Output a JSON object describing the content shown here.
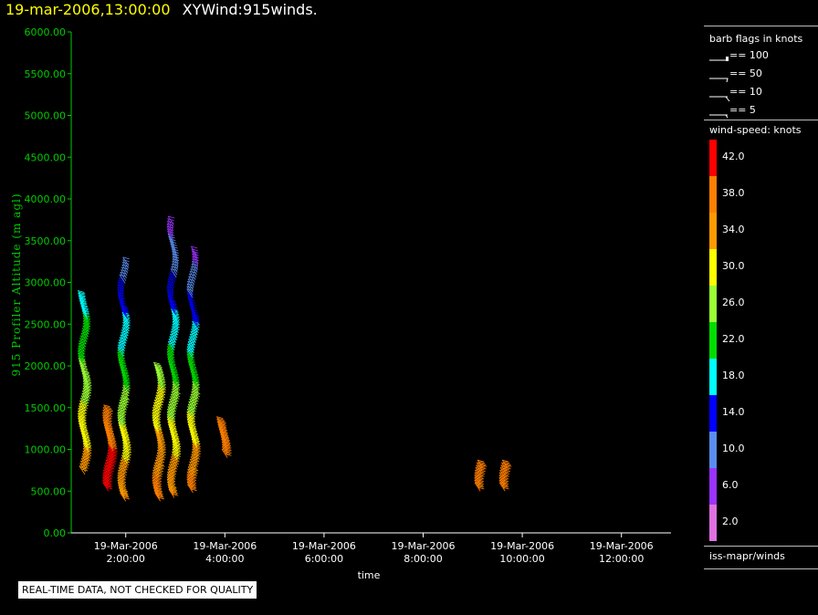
{
  "header": {
    "timestamp": "19-mar-2006,13:00:00",
    "title": "XYWind:915winds."
  },
  "colors": {
    "axis_y": "#00cc00",
    "axis_x": "#ffffff",
    "timestamp": "#ffff00"
  },
  "chart_data": {
    "type": "scatter",
    "title": "XYWind:915winds.",
    "xlabel": "time",
    "ylabel": "915 Profiler Altitude (m agl)",
    "yticks": [
      "0.00",
      "500.00",
      "1000.00",
      "1500.00",
      "2000.00",
      "2500.00",
      "3000.00",
      "3500.00",
      "4000.00",
      "4500.00",
      "5000.00",
      "5500.00",
      "6000.00"
    ],
    "ylim": [
      0,
      6000
    ],
    "xlim": [
      "19-Mar-2006 00:54:00",
      "19-Mar-2006 13:00:00"
    ],
    "xticks": [
      {
        "time": "19-Mar-2006 02:00:00",
        "date": "19-Mar-2006",
        "clock": "2:00:00"
      },
      {
        "time": "19-Mar-2006 04:00:00",
        "date": "19-Mar-2006",
        "clock": "4:00:00"
      },
      {
        "time": "19-Mar-2006 06:00:00",
        "date": "19-Mar-2006",
        "clock": "6:00:00"
      },
      {
        "time": "19-Mar-2006 08:00:00",
        "date": "19-Mar-2006",
        "clock": "8:00:00"
      },
      {
        "time": "19-Mar-2006 10:00:00",
        "date": "19-Mar-2006",
        "clock": "10:00:00"
      },
      {
        "time": "19-Mar-2006 12:00:00",
        "date": "19-Mar-2006",
        "clock": "12:00:00"
      }
    ],
    "grid": false,
    "profiles": [
      {
        "time": "19-Mar-2006 01:12:00",
        "alt_min": 700,
        "alt_max": 2800,
        "speed_top": 18,
        "speed_bottom": 34
      },
      {
        "time": "19-Mar-2006 01:42:00",
        "alt_min": 500,
        "alt_max": 1450,
        "speed_top": 38,
        "speed_bottom": 42
      },
      {
        "time": "19-Mar-2006 02:00:00",
        "alt_min": 380,
        "alt_max": 3200,
        "speed_top": 10,
        "speed_bottom": 36
      },
      {
        "time": "19-Mar-2006 02:42:00",
        "alt_min": 380,
        "alt_max": 1950,
        "speed_top": 26,
        "speed_bottom": 38
      },
      {
        "time": "19-Mar-2006 03:00:00",
        "alt_min": 420,
        "alt_max": 3700,
        "speed_top": 6,
        "speed_bottom": 36
      },
      {
        "time": "19-Mar-2006 03:24:00",
        "alt_min": 480,
        "alt_max": 3350,
        "speed_top": 6,
        "speed_bottom": 38
      },
      {
        "time": "19-Mar-2006 04:00:00",
        "alt_min": 900,
        "alt_max": 1300,
        "speed_top": 36,
        "speed_bottom": 36
      },
      {
        "time": "19-Mar-2006 09:12:00",
        "alt_min": 500,
        "alt_max": 780,
        "speed_top": 36,
        "speed_bottom": 36
      },
      {
        "time": "19-Mar-2006 09:42:00",
        "alt_min": 500,
        "alt_max": 780,
        "speed_top": 36,
        "speed_bottom": 36
      }
    ]
  },
  "barb_legend": {
    "title": "barb flags in knots",
    "items": [
      "== 100",
      "== 50",
      "== 10",
      "== 5"
    ]
  },
  "colorbar": {
    "title": "wind-speed: knots",
    "labels": [
      "42.0",
      "38.0",
      "34.0",
      "30.0",
      "26.0",
      "22.0",
      "18.0",
      "14.0",
      "10.0",
      "6.0",
      "2.0"
    ],
    "colors": [
      "#ff0000",
      "#ff7f00",
      "#ff9900",
      "#ffff00",
      "#99ff33",
      "#00dd00",
      "#00ffff",
      "#0000ff",
      "#5b8def",
      "#9933ff",
      "#e070e0"
    ]
  },
  "source_label": "iss-mapr/winds",
  "disclaimer": "REAL-TIME DATA, NOT CHECKED FOR QUALITY"
}
